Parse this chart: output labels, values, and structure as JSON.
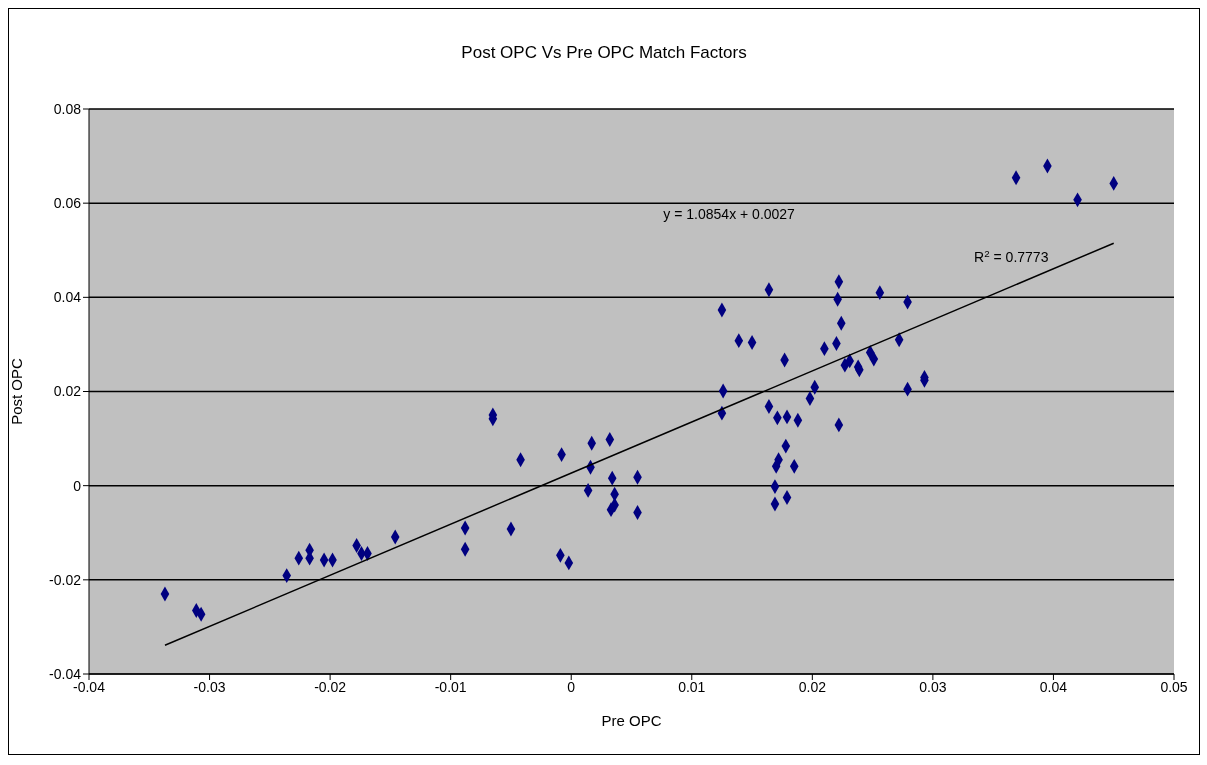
{
  "chart_data": {
    "type": "scatter",
    "title": "Post OPC Vs Pre OPC Match Factors",
    "xlabel": "Pre OPC",
    "ylabel": "Post OPC",
    "annotations": [
      "y = 1.0854x + 0.0027",
      "R$^{2}$ = 0.7773"
    ],
    "series": [
      {
        "color": "#000080",
        "x": [
          -0.0337,
          -0.0311,
          -0.0307,
          -0.0236,
          -0.0226,
          -0.0217,
          -0.0217,
          -0.0205,
          -0.0198,
          -0.0178,
          -0.0174,
          -0.0169,
          -0.0146,
          -0.0088,
          -0.0088,
          -0.0065,
          -0.0065,
          -0.005,
          -0.0042,
          -0.0008,
          -0.0009,
          -0.0002,
          0.0017,
          0.0032,
          0.0016,
          0.0034,
          0.0055,
          0.0014,
          0.0036,
          0.0036,
          0.0033,
          0.0055,
          0.0126,
          0.0125,
          0.0164,
          0.0171,
          0.0179,
          0.0188,
          0.0178,
          0.0172,
          0.017,
          0.0185,
          0.0169,
          0.0169,
          0.0179,
          0.0198,
          0.0202,
          0.0222,
          0.0279,
          0.0293,
          0.0293,
          0.0164,
          0.0222,
          0.0221,
          0.0256,
          0.0279,
          0.0125,
          0.0224,
          0.0139,
          0.015,
          0.0177,
          0.021,
          0.022,
          0.0231,
          0.0227,
          0.0238,
          0.0239,
          0.0248,
          0.0251,
          0.0272,
          0.0369,
          0.0395,
          0.042,
          0.045
        ],
        "values": [
          -0.023,
          -0.0265,
          -0.0273,
          -0.0191,
          -0.0154,
          -0.0137,
          -0.0154,
          -0.0158,
          -0.0158,
          -0.0127,
          -0.0144,
          -0.0144,
          -0.0109,
          -0.009,
          -0.0135,
          0.015,
          0.0142,
          -0.0092,
          0.0055,
          0.0066,
          -0.0148,
          -0.0164,
          0.009,
          0.0098,
          0.0039,
          0.0016,
          0.0018,
          -0.001,
          -0.0018,
          -0.0041,
          -0.0051,
          -0.0057,
          0.0201,
          0.0154,
          0.0168,
          0.0144,
          0.0146,
          0.0139,
          0.0084,
          0.0055,
          0.0041,
          0.0041,
          -0.0002,
          -0.0039,
          -0.0025,
          0.0185,
          0.0209,
          0.0129,
          0.0205,
          0.023,
          0.0224,
          0.0416,
          0.0433,
          0.0396,
          0.041,
          0.039,
          0.0373,
          0.0345,
          0.0308,
          0.0304,
          0.0267,
          0.0291,
          0.0302,
          0.0265,
          0.0256,
          0.0252,
          0.0246,
          0.0283,
          0.0269,
          0.031,
          0.0654,
          0.0679,
          0.0607,
          0.0642
        ],
        "marker": "diamond"
      },
      {
        "type": "line",
        "color": "#000000",
        "x": [
          -0.0337,
          0.045
        ],
        "values": [
          -0.0339,
          0.0515
        ],
        "marker": "none",
        "line_style": "solid"
      }
    ],
    "xlim": [
      -0.04,
      0.05
    ],
    "xticks": [
      -0.04,
      -0.03,
      -0.02,
      -0.01,
      0,
      0.01,
      0.02,
      0.03,
      0.04,
      0.05
    ],
    "ylim": [
      -0.04,
      0.08
    ],
    "yticks": [
      -0.04,
      -0.02,
      0,
      0.02,
      0.04,
      0.06,
      0.08
    ],
    "grid": "y",
    "legend": false
  }
}
